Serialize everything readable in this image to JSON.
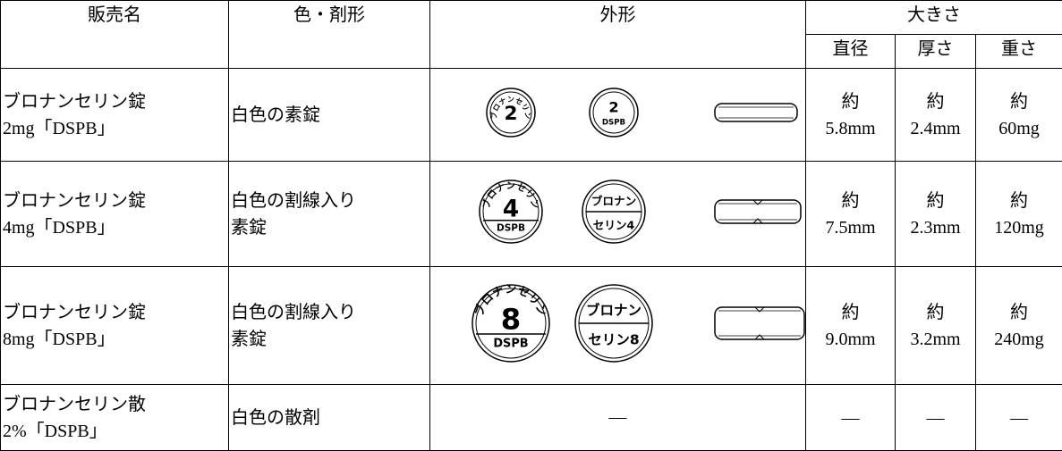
{
  "table": {
    "header": {
      "name": "販売名",
      "color_form": "色・剤形",
      "appearance": "外形",
      "size": "大きさ",
      "diameter": "直径",
      "thickness": "厚さ",
      "weight": "重さ"
    },
    "rows": [
      {
        "name": [
          "ブロナンセリン錠",
          "2mg「DSPB」"
        ],
        "form": [
          "白色の素錠"
        ],
        "appearance": {
          "front": {
            "arc": "ブロナンセリン",
            "mark": "2"
          },
          "back": {
            "top": "2",
            "bottom": "DSPB"
          }
        },
        "diameter": [
          "約",
          "5.8mm"
        ],
        "thickness": [
          "約",
          "2.4mm"
        ],
        "weight": [
          "約",
          "60mg"
        ]
      },
      {
        "name": [
          "ブロナンセリン錠",
          "4mg「DSPB」"
        ],
        "form": [
          "白色の割線入り",
          "素錠"
        ],
        "appearance": {
          "front": {
            "arc": "ブロナンセリン",
            "mark": "4",
            "bottom": "DSPB"
          },
          "back": {
            "top": "ブロナン",
            "bottom": "セリン4"
          }
        },
        "diameter": [
          "約",
          "7.5mm"
        ],
        "thickness": [
          "約",
          "2.3mm"
        ],
        "weight": [
          "約",
          "120mg"
        ]
      },
      {
        "name": [
          "ブロナンセリン錠",
          "8mg「DSPB」"
        ],
        "form": [
          "白色の割線入り",
          "素錠"
        ],
        "appearance": {
          "front": {
            "arc": "ブロナンセリン",
            "mark": "8",
            "bottom": "DSPB"
          },
          "back": {
            "top": "ブロナン",
            "bottom": "セリン8"
          }
        },
        "diameter": [
          "約",
          "9.0mm"
        ],
        "thickness": [
          "約",
          "3.2mm"
        ],
        "weight": [
          "約",
          "240mg"
        ]
      },
      {
        "name": [
          "ブロナンセリン散",
          "2%「DSPB」"
        ],
        "form": [
          "白色の散剤"
        ],
        "appearance": "—",
        "diameter": [
          "—"
        ],
        "thickness": [
          "—"
        ],
        "weight": [
          "—"
        ]
      }
    ]
  }
}
